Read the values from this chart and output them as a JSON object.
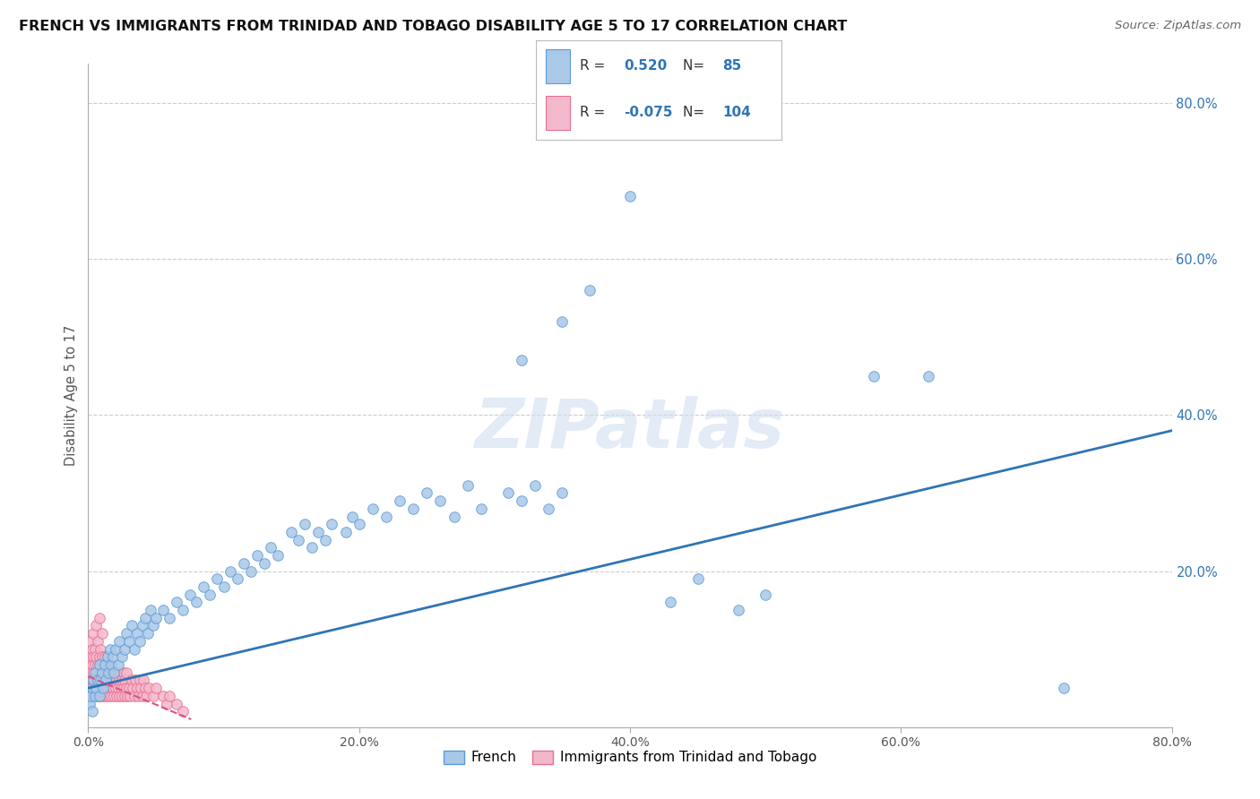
{
  "title": "FRENCH VS IMMIGRANTS FROM TRINIDAD AND TOBAGO DISABILITY AGE 5 TO 17 CORRELATION CHART",
  "source": "Source: ZipAtlas.com",
  "ylabel": "Disability Age 5 to 17",
  "xlim": [
    0.0,
    0.8
  ],
  "ylim": [
    0.0,
    0.85
  ],
  "xticks": [
    0.0,
    0.2,
    0.4,
    0.6,
    0.8
  ],
  "yticks_right": [
    0.2,
    0.4,
    0.6,
    0.8
  ],
  "grid_color": "#cccccc",
  "background": "#ffffff",
  "french": {
    "R": 0.52,
    "N": 85,
    "color": "#aac8e8",
    "edge_color": "#5b9bd5",
    "line_color": "#2e75b6",
    "label": "French"
  },
  "immigrants": {
    "R": -0.075,
    "N": 104,
    "color": "#f4b8cc",
    "edge_color": "#e87090",
    "line_color": "#e05080",
    "label": "Immigrants from Trinidad and Tobago"
  },
  "watermark": "ZIPatlas",
  "legend_color": "#2e75b6"
}
